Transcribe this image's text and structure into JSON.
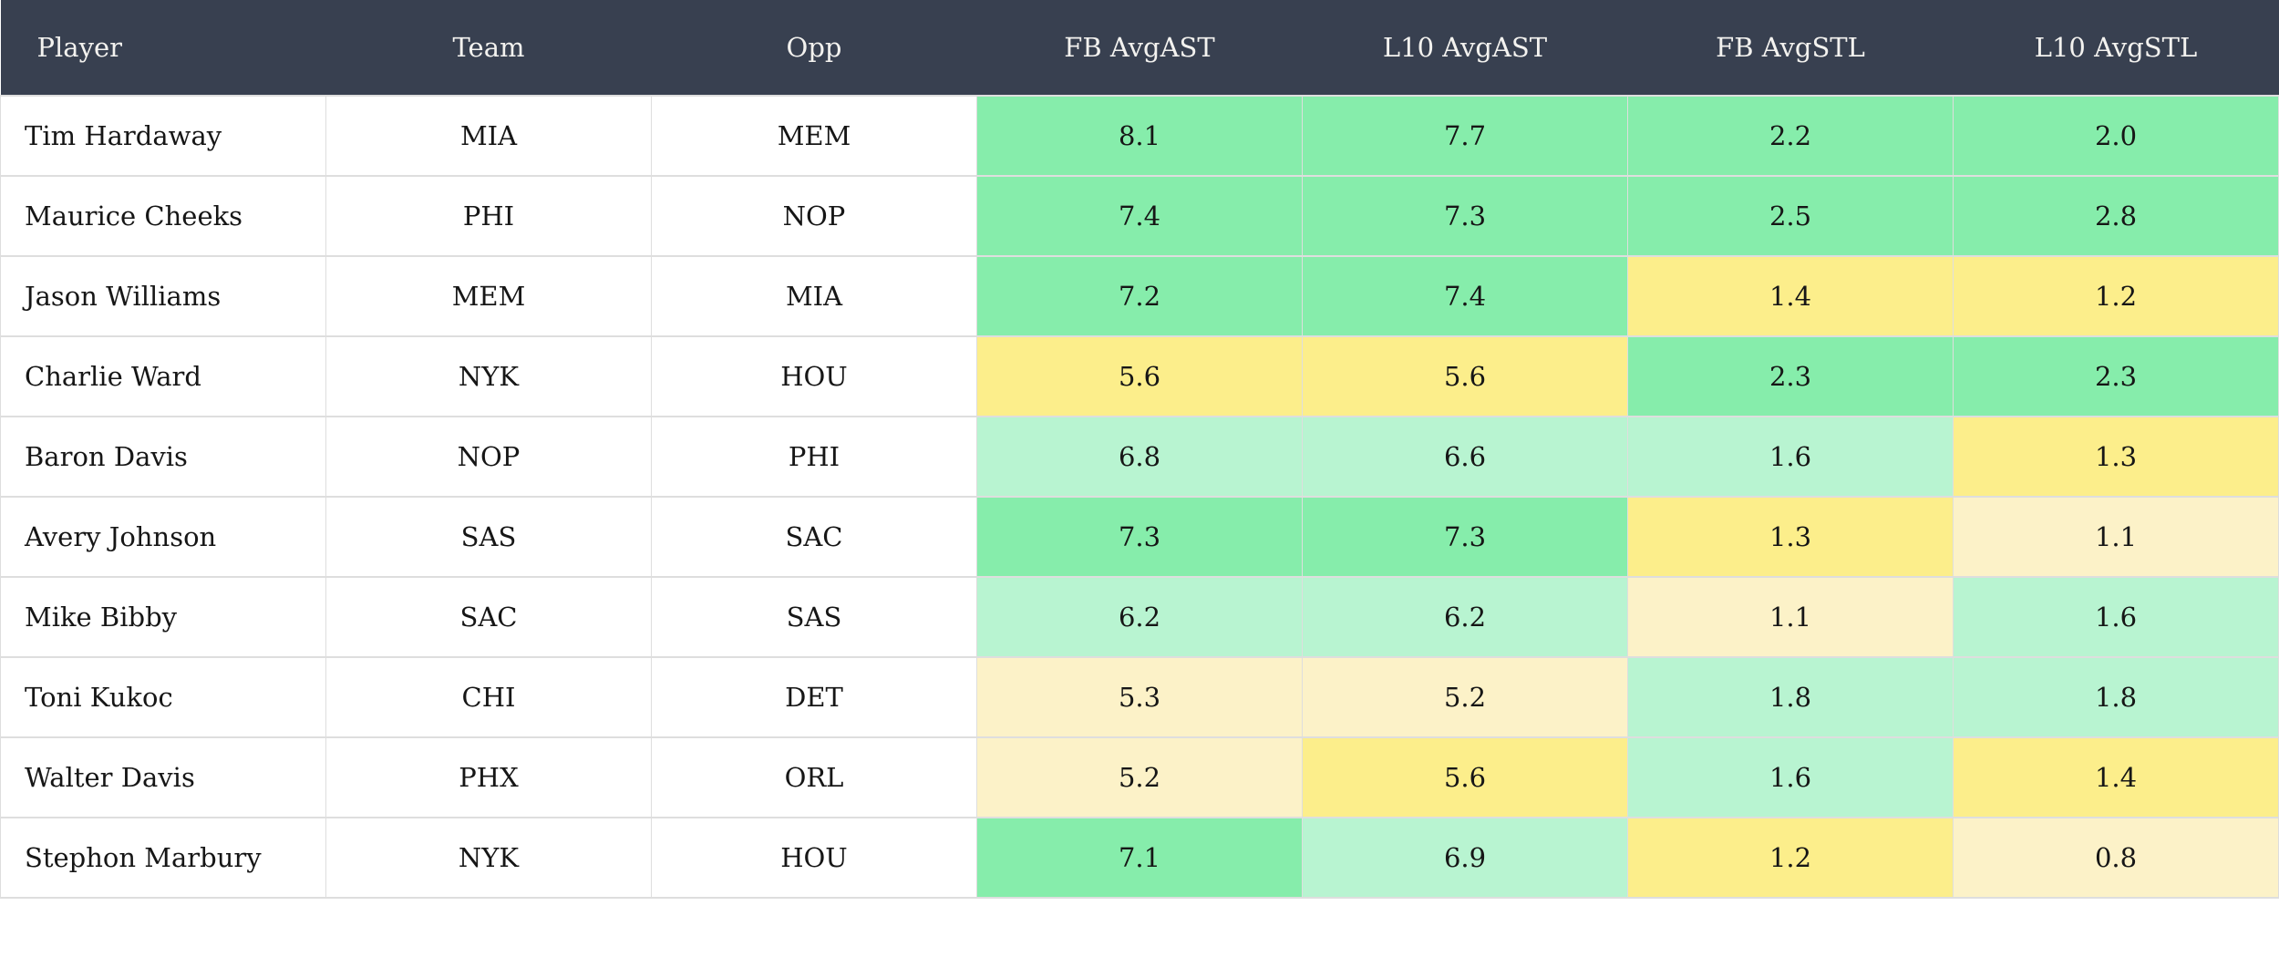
{
  "colors": {
    "header_bg": "#384050",
    "header_text": "#f3f2ef",
    "cell_text": "#161616",
    "border": "#dedede",
    "green": "#86edab",
    "lightgreen": "#b8f4d1",
    "yellow": "#fcee8b",
    "cream": "#fcf2c8"
  },
  "table": {
    "columns": [
      {
        "key": "player",
        "label": "Player"
      },
      {
        "key": "team",
        "label": "Team"
      },
      {
        "key": "opp",
        "label": "Opp"
      },
      {
        "key": "fb_avgast",
        "label": "FB AvgAST"
      },
      {
        "key": "l10_avgast",
        "label": "L10 AvgAST"
      },
      {
        "key": "fb_avgstl",
        "label": "FB AvgSTL"
      },
      {
        "key": "l10_avgstl",
        "label": "L10 AvgSTL"
      }
    ],
    "rows": [
      {
        "player": "Tim Hardaway",
        "team": "MIA",
        "opp": "MEM",
        "stats": [
          {
            "v": "8.1",
            "c": "green"
          },
          {
            "v": "7.7",
            "c": "green"
          },
          {
            "v": "2.2",
            "c": "green"
          },
          {
            "v": "2.0",
            "c": "green"
          }
        ]
      },
      {
        "player": "Maurice Cheeks",
        "team": "PHI",
        "opp": "NOP",
        "stats": [
          {
            "v": "7.4",
            "c": "green"
          },
          {
            "v": "7.3",
            "c": "green"
          },
          {
            "v": "2.5",
            "c": "green"
          },
          {
            "v": "2.8",
            "c": "green"
          }
        ]
      },
      {
        "player": "Jason Williams",
        "team": "MEM",
        "opp": "MIA",
        "stats": [
          {
            "v": "7.2",
            "c": "green"
          },
          {
            "v": "7.4",
            "c": "green"
          },
          {
            "v": "1.4",
            "c": "yellow"
          },
          {
            "v": "1.2",
            "c": "yellow"
          }
        ]
      },
      {
        "player": "Charlie Ward",
        "team": "NYK",
        "opp": "HOU",
        "stats": [
          {
            "v": "5.6",
            "c": "yellow"
          },
          {
            "v": "5.6",
            "c": "yellow"
          },
          {
            "v": "2.3",
            "c": "green"
          },
          {
            "v": "2.3",
            "c": "green"
          }
        ]
      },
      {
        "player": "Baron Davis",
        "team": "NOP",
        "opp": "PHI",
        "stats": [
          {
            "v": "6.8",
            "c": "lightgreen"
          },
          {
            "v": "6.6",
            "c": "lightgreen"
          },
          {
            "v": "1.6",
            "c": "lightgreen"
          },
          {
            "v": "1.3",
            "c": "yellow"
          }
        ]
      },
      {
        "player": "Avery Johnson",
        "team": "SAS",
        "opp": "SAC",
        "stats": [
          {
            "v": "7.3",
            "c": "green"
          },
          {
            "v": "7.3",
            "c": "green"
          },
          {
            "v": "1.3",
            "c": "yellow"
          },
          {
            "v": "1.1",
            "c": "cream"
          }
        ]
      },
      {
        "player": "Mike Bibby",
        "team": "SAC",
        "opp": "SAS",
        "stats": [
          {
            "v": "6.2",
            "c": "lightgreen"
          },
          {
            "v": "6.2",
            "c": "lightgreen"
          },
          {
            "v": "1.1",
            "c": "cream"
          },
          {
            "v": "1.6",
            "c": "lightgreen"
          }
        ]
      },
      {
        "player": "Toni Kukoc",
        "team": "CHI",
        "opp": "DET",
        "stats": [
          {
            "v": "5.3",
            "c": "cream"
          },
          {
            "v": "5.2",
            "c": "cream"
          },
          {
            "v": "1.8",
            "c": "lightgreen"
          },
          {
            "v": "1.8",
            "c": "lightgreen"
          }
        ]
      },
      {
        "player": "Walter Davis",
        "team": "PHX",
        "opp": "ORL",
        "stats": [
          {
            "v": "5.2",
            "c": "cream"
          },
          {
            "v": "5.6",
            "c": "yellow"
          },
          {
            "v": "1.6",
            "c": "lightgreen"
          },
          {
            "v": "1.4",
            "c": "yellow"
          }
        ]
      },
      {
        "player": "Stephon Marbury",
        "team": "NYK",
        "opp": "HOU",
        "stats": [
          {
            "v": "7.1",
            "c": "green"
          },
          {
            "v": "6.9",
            "c": "lightgreen"
          },
          {
            "v": "1.2",
            "c": "yellow"
          },
          {
            "v": "0.8",
            "c": "cream"
          }
        ]
      }
    ]
  }
}
